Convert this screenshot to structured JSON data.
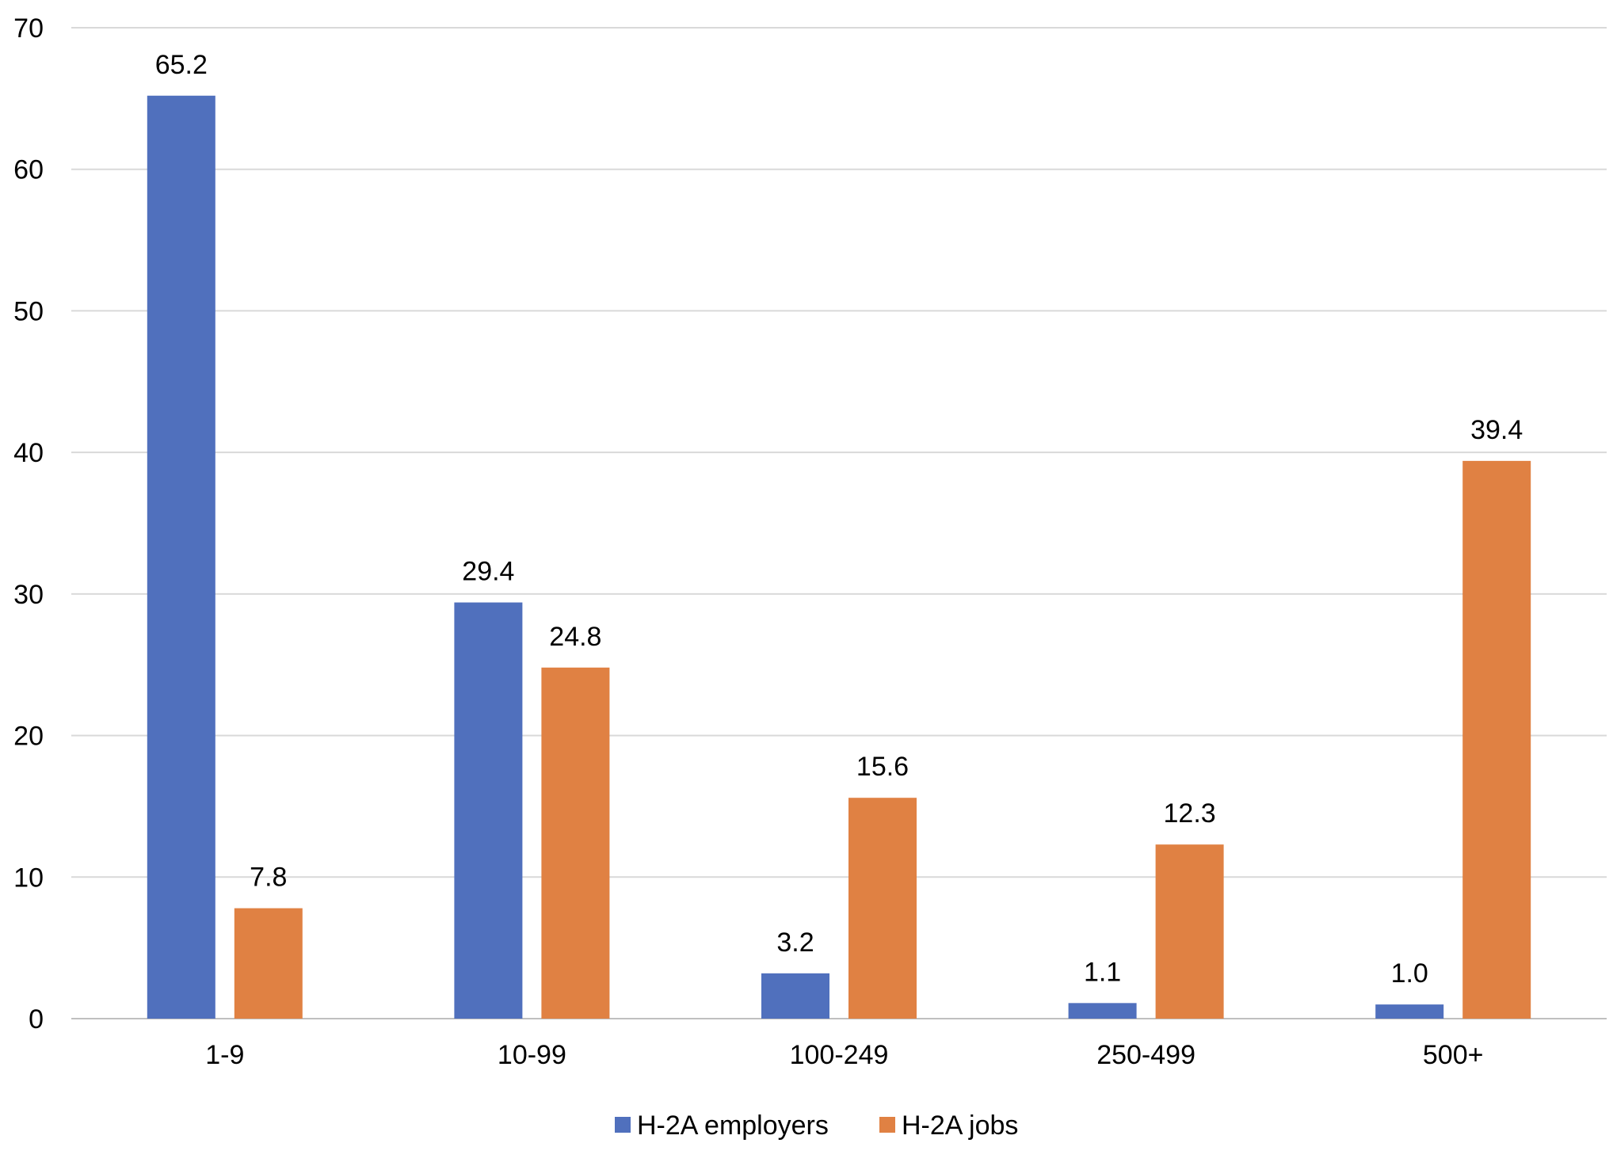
{
  "chart_data": {
    "type": "bar",
    "categories": [
      "1-9",
      "10-99",
      "100-249",
      "250-499",
      "500+"
    ],
    "series": [
      {
        "name": "H-2A employers",
        "values": [
          65.2,
          29.4,
          3.2,
          1.1,
          1.0
        ],
        "labels": [
          "65.2",
          "29.4",
          "3.2",
          "1.1",
          "1.0"
        ],
        "color": "#5070BD"
      },
      {
        "name": "H-2A jobs",
        "values": [
          7.8,
          24.8,
          15.6,
          12.3,
          39.4
        ],
        "labels": [
          "7.8",
          "24.8",
          "15.6",
          "12.3",
          "39.4"
        ],
        "color": "#E08143"
      }
    ],
    "yticks": [
      "0",
      "10",
      "20",
      "30",
      "40",
      "50",
      "60",
      "70"
    ],
    "ylim": [
      0,
      70
    ],
    "grid": true,
    "legend_position": "bottom"
  }
}
